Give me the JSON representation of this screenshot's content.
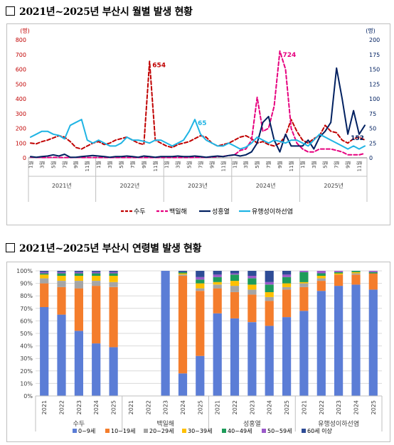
{
  "section1": {
    "title": "2021년~2025년 부산시 월별 발생 현황"
  },
  "section2": {
    "title": "2021년~2025년 부산시 연령별 발생 현황"
  },
  "chart_data": [
    {
      "type": "line",
      "y_unit_left": "(명)",
      "y_unit_right": "(명)",
      "ylim_left": [
        0,
        800
      ],
      "ylim_right": [
        0,
        200
      ],
      "y_ticks_left": [
        "0",
        "100",
        "200",
        "300",
        "400",
        "500",
        "600",
        "700",
        "800"
      ],
      "y_ticks_right": [
        "0",
        "25",
        "50",
        "75",
        "100",
        "125",
        "150",
        "175",
        "200"
      ],
      "x_month_labels": [
        "1월",
        "3월",
        "5월",
        "7월",
        "9월",
        "11월"
      ],
      "years": [
        "2021년",
        "2022년",
        "2023년",
        "2024년",
        "2025년"
      ],
      "legend_position": "bottom",
      "series": [
        {
          "name": "수두",
          "axis": "left",
          "color": "#c00000",
          "dash": "dashed",
          "values": [
            100,
            95,
            110,
            120,
            135,
            150,
            140,
            110,
            70,
            60,
            80,
            100,
            110,
            90,
            100,
            120,
            130,
            140,
            120,
            100,
            90,
            654,
            120,
            100,
            80,
            70,
            90,
            100,
            110,
            130,
            150,
            140,
            100,
            80,
            90,
            100,
            120,
            140,
            150,
            130,
            100,
            110,
            90,
            80,
            100,
            150,
            260,
            180,
            120,
            100,
            130,
            150,
            220,
            180,
            170,
            120,
            100,
            130,
            140,
            120
          ]
        },
        {
          "name": "백일해",
          "axis": "left",
          "color": "#e6007e",
          "dash": "dashed",
          "values": [
            5,
            3,
            2,
            2,
            3,
            2,
            2,
            2,
            3,
            2,
            2,
            2,
            2,
            2,
            2,
            2,
            2,
            2,
            2,
            2,
            2,
            2,
            2,
            2,
            2,
            2,
            2,
            2,
            2,
            3,
            3,
            3,
            5,
            8,
            10,
            15,
            20,
            50,
            60,
            120,
            410,
            180,
            200,
            350,
            724,
            600,
            200,
            100,
            60,
            40,
            40,
            60,
            60,
            60,
            50,
            40,
            20,
            20,
            20,
            30
          ]
        },
        {
          "name": "성홍열",
          "axis": "right",
          "color": "#002060",
          "dash": "solid",
          "values": [
            2,
            1,
            2,
            3,
            5,
            3,
            6,
            1,
            1,
            2,
            3,
            4,
            3,
            2,
            1,
            2,
            2,
            3,
            2,
            1,
            3,
            2,
            1,
            2,
            2,
            2,
            3,
            2,
            2,
            3,
            2,
            1,
            2,
            3,
            2,
            4,
            5,
            3,
            5,
            10,
            25,
            60,
            70,
            30,
            10,
            40,
            20,
            20,
            20,
            30,
            15,
            35,
            45,
            60,
            152,
            100,
            40,
            80,
            40,
            55
          ]
        },
        {
          "name": "유행성이하선염",
          "axis": "right",
          "color": "#1fb4e4",
          "dash": "solid",
          "values": [
            35,
            40,
            45,
            45,
            40,
            38,
            32,
            55,
            60,
            65,
            30,
            25,
            30,
            25,
            20,
            20,
            25,
            35,
            30,
            30,
            28,
            25,
            30,
            30,
            25,
            20,
            25,
            30,
            45,
            65,
            40,
            30,
            25,
            20,
            20,
            25,
            20,
            15,
            18,
            25,
            35,
            30,
            25,
            30,
            28,
            25,
            30,
            30,
            25,
            20,
            30,
            40,
            35,
            30,
            25,
            20,
            15,
            20,
            15,
            20
          ]
        }
      ],
      "annotations": [
        {
          "text": "654",
          "series": "수두",
          "index": 21
        },
        {
          "text": "724",
          "series": "백일해",
          "index": 44
        },
        {
          "text": "152",
          "series": "성홍열",
          "index": 56
        },
        {
          "text": "65",
          "series": "유행성이하선염",
          "index": 29
        }
      ]
    },
    {
      "type": "bar",
      "stacked": true,
      "ylim": [
        0,
        100
      ],
      "y_ticks": [
        "0%",
        "10%",
        "20%",
        "30%",
        "40%",
        "50%",
        "60%",
        "70%",
        "80%",
        "90%",
        "100%"
      ],
      "groups": [
        "수두",
        "백일해",
        "성홍열",
        "유행성이하선염"
      ],
      "group_labels": [
        "수두",
        "백일해",
        "성홍열",
        "유행성이하선염"
      ],
      "categories": [
        "2021",
        "2022",
        "2023",
        "2024",
        "2025",
        "2021",
        "2022",
        "2023",
        "2024",
        "2025",
        "2021",
        "2022",
        "2023",
        "2024",
        "2025",
        "2021",
        "2022",
        "2023",
        "2024",
        "2025"
      ],
      "legend_position": "bottom",
      "series": [
        {
          "name": "0~9세",
          "color": "#5b7dd6",
          "values": [
            71,
            65,
            52,
            42,
            39,
            null,
            null,
            100,
            18,
            32,
            66,
            62,
            59,
            56,
            63,
            68,
            84,
            88,
            89,
            85
          ]
        },
        {
          "name": "10~19세",
          "color": "#f47d2c",
          "values": [
            19,
            22,
            34,
            46,
            48,
            null,
            null,
            0,
            78,
            52,
            20,
            21,
            22,
            20,
            22,
            19,
            8,
            9,
            8,
            13
          ]
        },
        {
          "name": "20~29세",
          "color": "#a5a5a5",
          "values": [
            4,
            5,
            6,
            4,
            4,
            null,
            null,
            0,
            1,
            2,
            3,
            5,
            4,
            3,
            2,
            3,
            2,
            0,
            1,
            0
          ]
        },
        {
          "name": "30~39세",
          "color": "#ffc000",
          "values": [
            3,
            4,
            4,
            4,
            5,
            null,
            null,
            0,
            1,
            4,
            2,
            4,
            4,
            4,
            3,
            1,
            2,
            1,
            1,
            0
          ]
        },
        {
          "name": "40~49세",
          "color": "#1e9c5a",
          "values": [
            1,
            2,
            2,
            2,
            2,
            null,
            null,
            0,
            1,
            3,
            4,
            5,
            5,
            6,
            5,
            8,
            2,
            1,
            1,
            1
          ]
        },
        {
          "name": "50~59세",
          "color": "#9b59c9",
          "values": [
            1,
            1,
            1,
            1,
            1,
            null,
            null,
            0,
            0,
            2,
            2,
            1,
            2,
            2,
            2,
            1,
            2,
            1,
            0,
            1
          ]
        },
        {
          "name": "60세 이상",
          "color": "#2e4c96",
          "values": [
            1,
            1,
            1,
            1,
            1,
            null,
            null,
            0,
            1,
            5,
            3,
            2,
            4,
            9,
            3,
            0,
            0,
            0,
            0,
            0
          ]
        }
      ]
    }
  ]
}
